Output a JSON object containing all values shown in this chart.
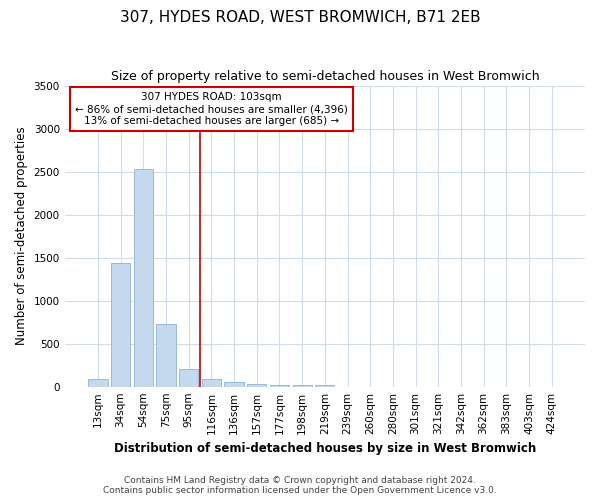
{
  "title": "307, HYDES ROAD, WEST BROMWICH, B71 2EB",
  "subtitle": "Size of property relative to semi-detached houses in West Bromwich",
  "xlabel": "Distribution of semi-detached houses by size in West Bromwich",
  "ylabel": "Number of semi-detached properties",
  "footnote1": "Contains HM Land Registry data © Crown copyright and database right 2024.",
  "footnote2": "Contains public sector information licensed under the Open Government Licence v3.0.",
  "categories": [
    "13sqm",
    "34sqm",
    "54sqm",
    "75sqm",
    "95sqm",
    "116sqm",
    "136sqm",
    "157sqm",
    "177sqm",
    "198sqm",
    "219sqm",
    "239sqm",
    "260sqm",
    "280sqm",
    "301sqm",
    "321sqm",
    "342sqm",
    "362sqm",
    "383sqm",
    "403sqm",
    "424sqm"
  ],
  "values": [
    90,
    1440,
    2530,
    730,
    200,
    90,
    55,
    35,
    25,
    25,
    25,
    0,
    0,
    0,
    0,
    0,
    0,
    0,
    0,
    0,
    0
  ],
  "bar_color": "#c5d9ee",
  "bar_edge_color": "#8ab4d4",
  "property_line_color": "#cc0000",
  "annotation_title": "307 HYDES ROAD: 103sqm",
  "annotation_line1": "← 86% of semi-detached houses are smaller (4,396)",
  "annotation_line2": "13% of semi-detached houses are larger (685) →",
  "annotation_box_color": "#cc0000",
  "ylim": [
    0,
    3500
  ],
  "yticks": [
    0,
    500,
    1000,
    1500,
    2000,
    2500,
    3000,
    3500
  ],
  "background_color": "#ffffff",
  "grid_color": "#d0dce8",
  "title_fontsize": 11,
  "subtitle_fontsize": 9,
  "axis_label_fontsize": 8.5,
  "tick_fontsize": 7.5,
  "footnote_fontsize": 6.5
}
